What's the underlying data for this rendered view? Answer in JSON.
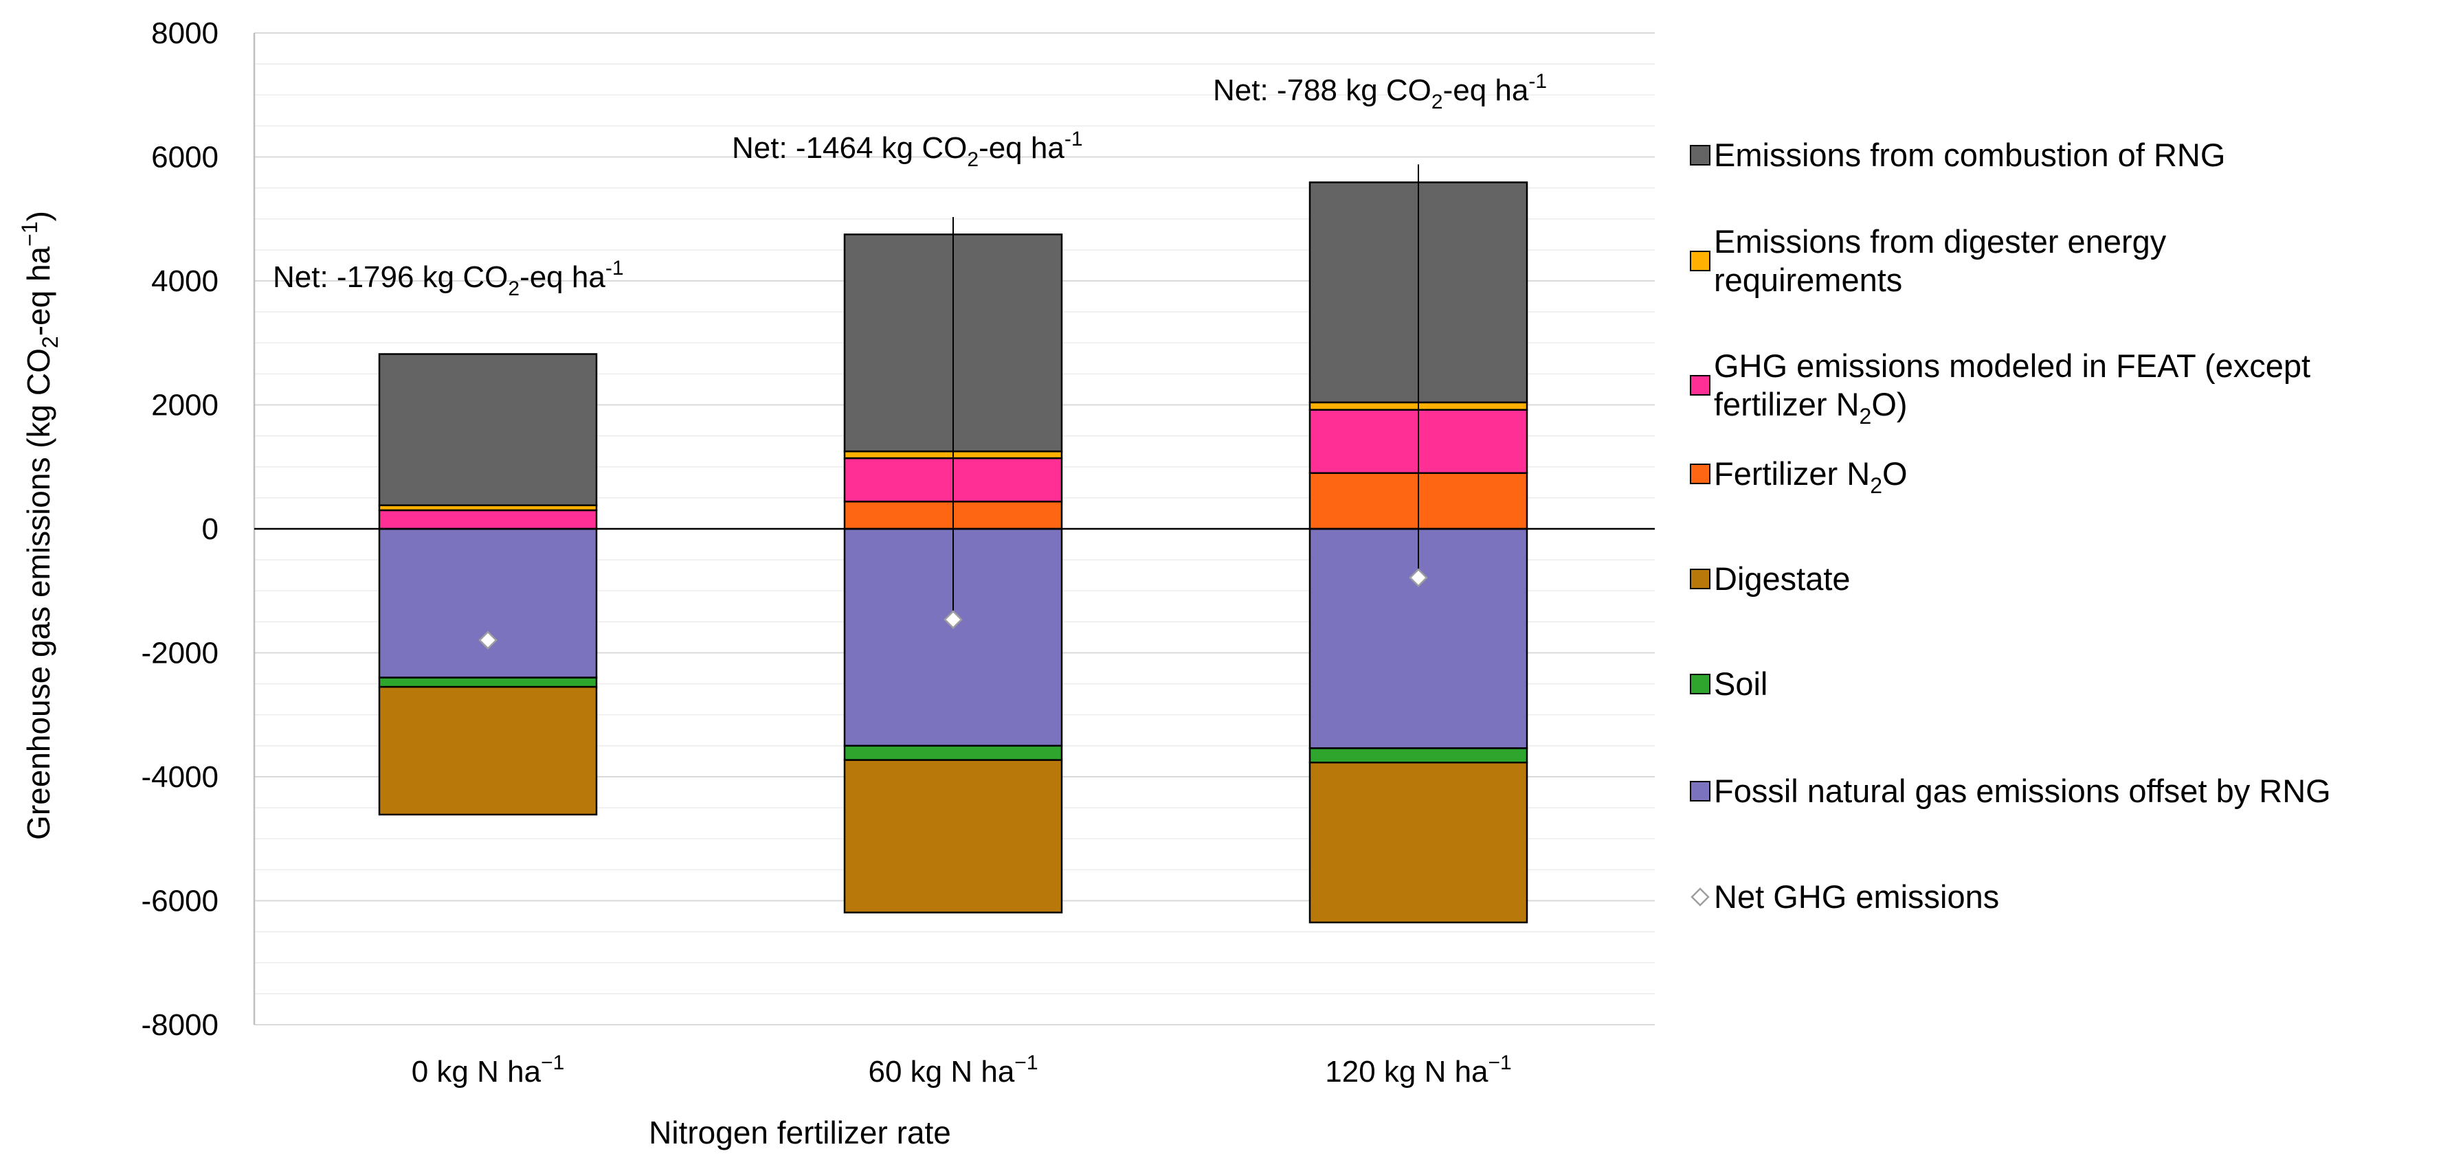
{
  "chart_data": {
    "type": "bar",
    "stacked": true,
    "ylabel": "Greenhouse gas emissions (kg CO",
    "ylabel_sub": "2",
    "ylabel_tail": "-eq ha",
    "ylabel_sup": "−1",
    "ylabel_end": ")",
    "xlabel": "Nitrogen fertilizer rate",
    "ylim": [
      -8000,
      8000
    ],
    "y_major_ticks": [
      8000,
      6000,
      4000,
      2000,
      0,
      -2000,
      -4000,
      -6000,
      -8000
    ],
    "y_tick_labels": [
      "8000",
      "6000",
      "4000",
      "2000",
      "0",
      "-2000",
      "-4000",
      "-6000",
      "-8000"
    ],
    "minor_grid_step": 500,
    "categories": [
      {
        "pre": "0 kg N ha",
        "sup": "−1"
      },
      {
        "pre": "60 kg N ha",
        "sup": "−1"
      },
      {
        "pre": "120 kg N ha",
        "sup": "−1"
      }
    ],
    "series": [
      {
        "name": "Fossil natural gas emissions offset by RNG",
        "color": "#7B73BE",
        "values": [
          -2400,
          -3500,
          -3540
        ]
      },
      {
        "name": "Soil",
        "color": "#2EA62E",
        "values": [
          -150,
          -230,
          -230
        ]
      },
      {
        "name": "Digestate",
        "color": "#B8780A",
        "values": [
          -2060,
          -2460,
          -2580
        ]
      },
      {
        "name": "Fertilizer N2O",
        "color": "#FF6611",
        "values": [
          0,
          440,
          900
        ]
      },
      {
        "name": "GHG emissions modeled in FEAT (except fertilizer N2O)",
        "color": "#FF2F95",
        "values": [
          300,
          700,
          1020
        ]
      },
      {
        "name": "Emissions from digester energy requirements",
        "color": "#FFB000",
        "values": [
          80,
          110,
          120
        ]
      },
      {
        "name": "Emissions from combustion of RNG",
        "color": "#646464",
        "values": [
          2440,
          3500,
          3550
        ]
      }
    ],
    "net": {
      "name": "Net GHG emissions",
      "values": [
        -1796,
        -1464,
        -788
      ],
      "error_high": [
        null,
        5030,
        5880
      ],
      "error_low": [
        null,
        -1430,
        -790
      ]
    },
    "net_labels": [
      {
        "pre": "Net: -1796 kg CO",
        "sub": "2",
        "mid": "-eq ha",
        "sup": "-1"
      },
      {
        "pre": "Net: -1464 kg CO",
        "sub": "2",
        "mid": "-eq ha",
        "sup": "-1"
      },
      {
        "pre": "Net: -788 kg CO",
        "sub": "2",
        "mid": "-eq ha",
        "sup": "-1"
      }
    ],
    "legend": [
      {
        "lines": [
          [
            {
              "t": "Emissions from combustion of RNG"
            }
          ]
        ],
        "color": "#646464",
        "marker": "square"
      },
      {
        "lines": [
          [
            {
              "t": "Emissions from digester energy"
            }
          ],
          [
            {
              "t": "requirements"
            }
          ]
        ],
        "color": "#FFB000",
        "marker": "square"
      },
      {
        "lines": [
          [
            {
              "t": "GHG emissions modeled in FEAT (except"
            }
          ],
          [
            {
              "t": "fertilizer N"
            },
            {
              "t": "2",
              "s": "sub"
            },
            {
              "t": "O)"
            }
          ]
        ],
        "color": "#FF2F95",
        "marker": "square"
      },
      {
        "lines": [
          [
            {
              "t": "Fertilizer N"
            },
            {
              "t": "2",
              "s": "sub"
            },
            {
              "t": "O"
            }
          ]
        ],
        "color": "#FF6611",
        "marker": "square"
      },
      {
        "lines": [
          [
            {
              "t": "Digestate"
            }
          ]
        ],
        "color": "#B8780A",
        "marker": "square"
      },
      {
        "lines": [
          [
            {
              "t": "Soil"
            }
          ]
        ],
        "color": "#2EA62E",
        "marker": "square"
      },
      {
        "lines": [
          [
            {
              "t": "Fossil natural gas emissions offset by RNG"
            }
          ]
        ],
        "color": "#7B73BE",
        "marker": "square"
      },
      {
        "lines": [
          [
            {
              "t": "Net GHG emissions"
            }
          ]
        ],
        "color": "#FFFFFF",
        "marker": "diamond"
      }
    ],
    "legend_position": "right"
  }
}
